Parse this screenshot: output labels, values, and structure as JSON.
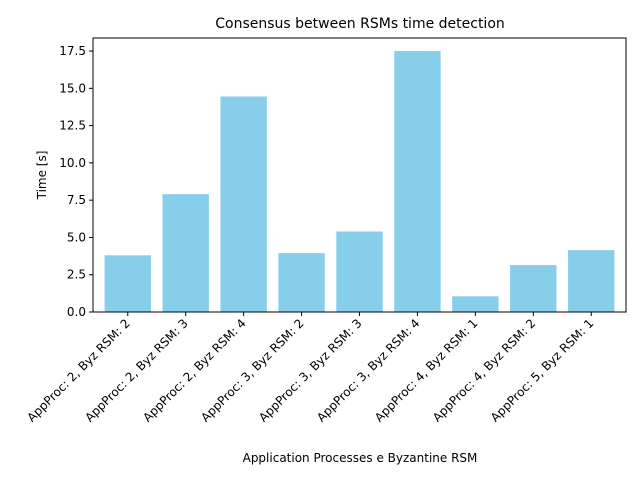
{
  "chart_data": {
    "type": "bar",
    "title": "Consensus between RSMs time detection",
    "xlabel": "Application Processes e Byzantine RSM",
    "ylabel": "Time [s]",
    "categories": [
      "AppProc: 2, Byz RSM: 2",
      "AppProc: 2, Byz RSM: 3",
      "AppProc: 2, Byz RSM: 4",
      "AppProc: 3, Byz RSM: 2",
      "AppProc: 3, Byz RSM: 3",
      "AppProc: 3, Byz RSM: 4",
      "AppProc: 4, Byz RSM: 1",
      "AppProc: 4, Byz RSM: 2",
      "AppProc: 5, Byz RSM: 1"
    ],
    "values": [
      3.8,
      7.9,
      14.45,
      3.95,
      5.4,
      17.5,
      1.05,
      3.15,
      4.15
    ],
    "yticks": [
      "0.0",
      "2.5",
      "5.0",
      "7.5",
      "10.0",
      "12.5",
      "15.0",
      "17.5"
    ],
    "ylim": [
      0,
      18.375
    ],
    "bar_color": "#87ceeb",
    "grid": false
  }
}
